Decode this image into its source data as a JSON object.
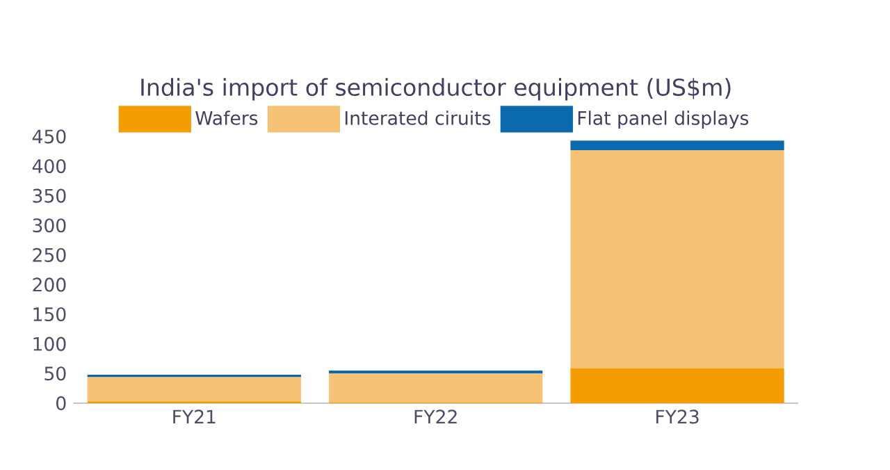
{
  "chart_data": {
    "type": "bar",
    "stacked": true,
    "title": "India's import of semiconductor equipment (US$m)",
    "categories": [
      "FY21",
      "FY22",
      "FY23"
    ],
    "series": [
      {
        "name": "Wafers",
        "color": "#f59c00",
        "values": [
          3,
          1,
          59
        ]
      },
      {
        "name": "Interated ciruits",
        "color": "#f5c276",
        "values": [
          41,
          49,
          368
        ]
      },
      {
        "name": "Flat panel displays",
        "color": "#0b6aad",
        "values": [
          4,
          5,
          16
        ]
      }
    ],
    "ylim": [
      0,
      450
    ],
    "yticks": [
      0,
      50,
      100,
      150,
      200,
      250,
      300,
      350,
      400,
      450
    ],
    "legend": "top"
  }
}
